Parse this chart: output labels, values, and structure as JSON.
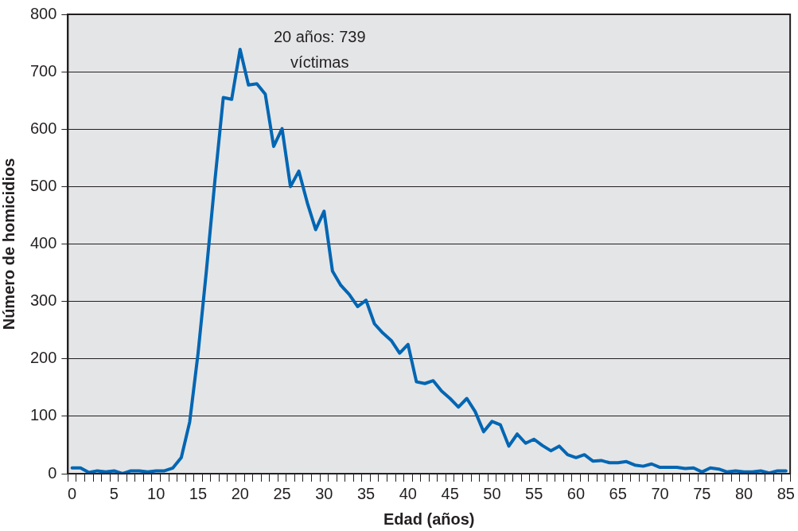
{
  "chart_data": {
    "type": "line",
    "xlabel": "Edad (años)",
    "ylabel": "Número de homicidios",
    "categories": [
      "0",
      null,
      null,
      null,
      null,
      "5",
      null,
      null,
      null,
      null,
      "10",
      null,
      null,
      null,
      null,
      "15",
      null,
      null,
      null,
      null,
      "20",
      null,
      null,
      null,
      null,
      "25",
      null,
      null,
      null,
      null,
      "30",
      null,
      null,
      null,
      null,
      "35",
      null,
      null,
      null,
      null,
      "40",
      null,
      null,
      null,
      null,
      "45",
      null,
      null,
      null,
      null,
      "50",
      null,
      null,
      null,
      null,
      "55",
      null,
      null,
      null,
      null,
      "60",
      null,
      null,
      null,
      null,
      "65",
      null,
      null,
      null,
      null,
      "70",
      null,
      null,
      null,
      null,
      "75",
      null,
      null,
      null,
      null,
      "80",
      null,
      null,
      null,
      null,
      "85"
    ],
    "series": [
      {
        "color": "#0066b3",
        "values": [
          10,
          10,
          2,
          5,
          3,
          5,
          0,
          5,
          5,
          3,
          5,
          5,
          10,
          28,
          90,
          210,
          355,
          510,
          655,
          652,
          739,
          677,
          679,
          661,
          570,
          601,
          500,
          527,
          472,
          425,
          457,
          353,
          328,
          312,
          291,
          302,
          261,
          245,
          232,
          210,
          225,
          160,
          157,
          162,
          144,
          131,
          116,
          131,
          108,
          73,
          91,
          85,
          48,
          69,
          53,
          60,
          49,
          40,
          48,
          33,
          28,
          33,
          22,
          23,
          19,
          19,
          21,
          15,
          13,
          17,
          11,
          11,
          11,
          9,
          10,
          3,
          10,
          8,
          3,
          5,
          3,
          3,
          5,
          1,
          5,
          5
        ]
      }
    ],
    "ylim": [
      0,
      800
    ],
    "yticks": [
      0,
      100,
      200,
      300,
      400,
      500,
      600,
      700,
      800
    ],
    "grid": "y",
    "legend": false,
    "marker": "none",
    "line_style": "solid",
    "annotations": [
      {
        "text": "20 años: 739\nvíctimas",
        "x": "20",
        "y": 739
      }
    ]
  }
}
